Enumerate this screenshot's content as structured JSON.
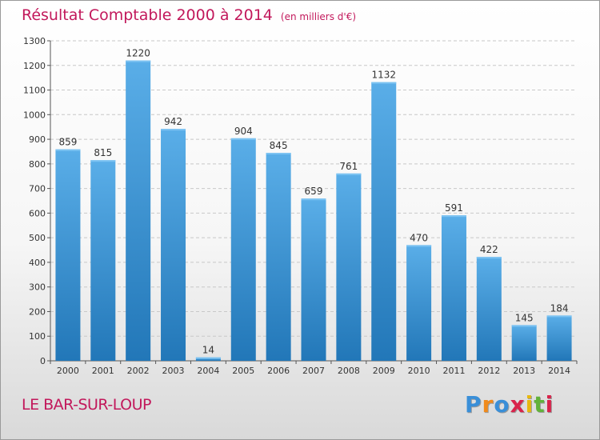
{
  "header": {
    "title": "Résultat Comptable 2000 à 2014",
    "subtitle": "(en milliers d'€)"
  },
  "footer": {
    "commune": "LE BAR-SUR-LOUP",
    "brand_letters": [
      "P",
      "r",
      "o",
      "x",
      "i",
      "t",
      "i"
    ]
  },
  "colors": {
    "title": "#c2185b",
    "bar_top": "#5aaee8",
    "bar_bottom": "#2277b8",
    "brand": [
      "#3a8fd8",
      "#f08a1c",
      "#3a8fd8",
      "#d9234b",
      "#e8b80f",
      "#62b23a",
      "#d9234b"
    ]
  },
  "chart_data": {
    "type": "bar",
    "categories": [
      "2000",
      "2001",
      "2002",
      "2003",
      "2004",
      "2005",
      "2006",
      "2007",
      "2008",
      "2009",
      "2010",
      "2011",
      "2012",
      "2013",
      "2014"
    ],
    "values": [
      859,
      815,
      1220,
      942,
      14,
      904,
      845,
      659,
      761,
      1132,
      470,
      591,
      422,
      145,
      184
    ],
    "title": "Résultat Comptable 2000 à 2014",
    "subtitle": "(en milliers d'€)",
    "xlabel": "",
    "ylabel": "",
    "ylim": [
      0,
      1300
    ],
    "yticks": [
      0,
      100,
      200,
      300,
      400,
      500,
      600,
      700,
      800,
      900,
      1000,
      1100,
      1200,
      1300
    ],
    "grid": true,
    "legend": "none"
  }
}
